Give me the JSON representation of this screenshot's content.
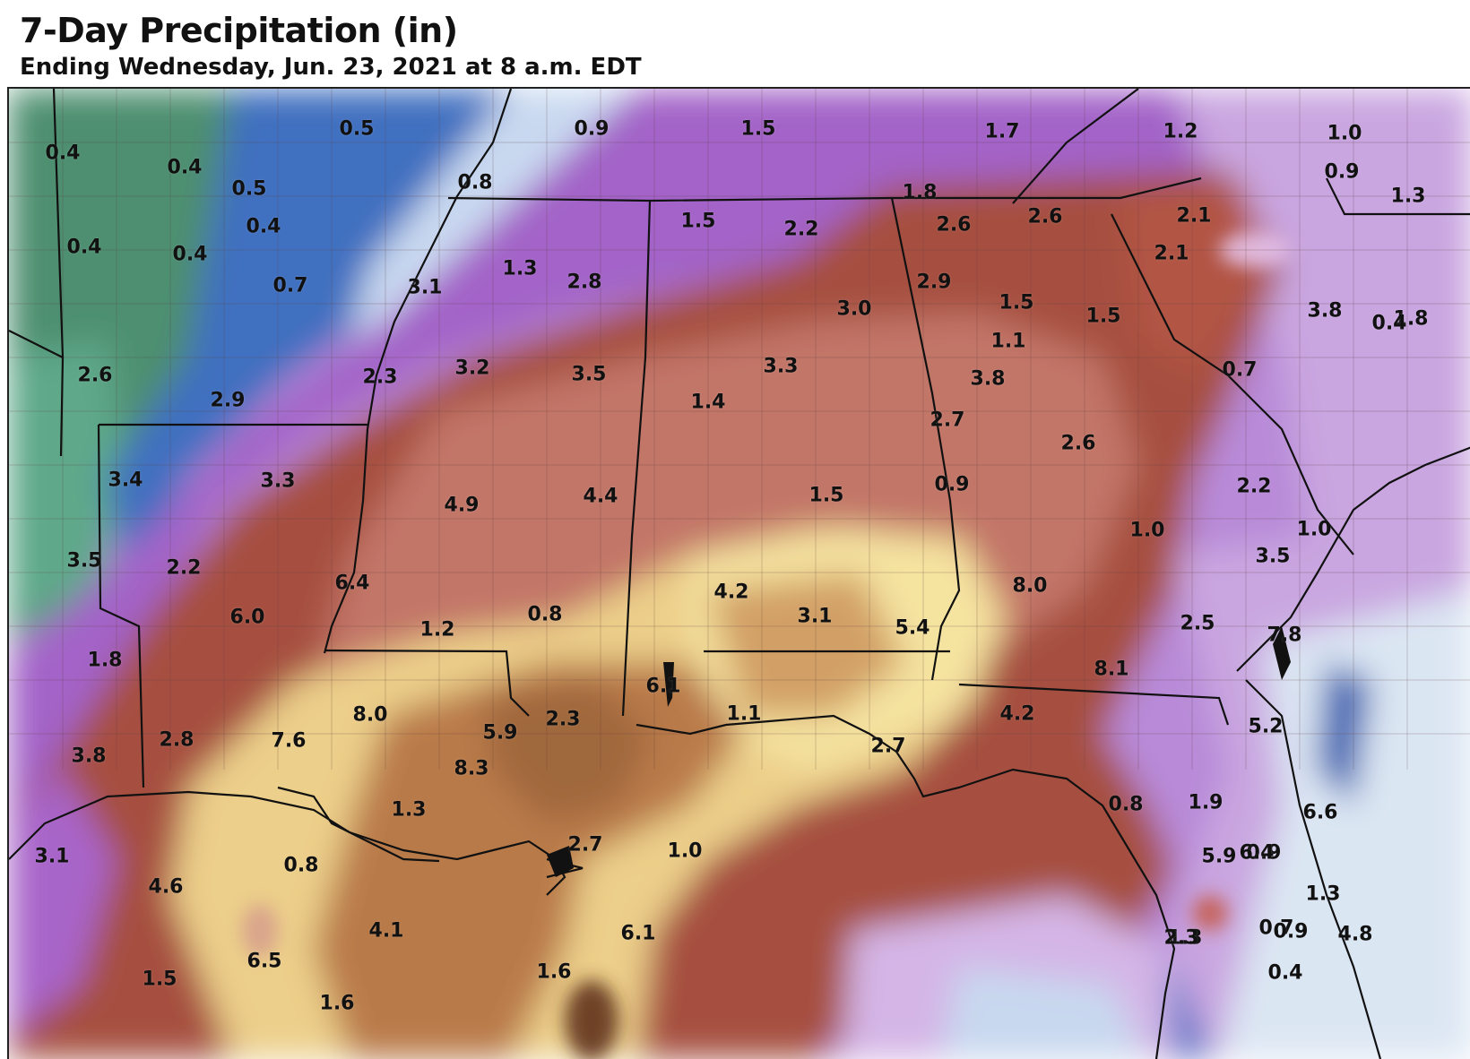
{
  "header": {
    "title": "7-Day Precipitation (in)",
    "subtitle": "Ending Wednesday, Jun. 23, 2021 at 8 a.m. EDT"
  },
  "legend_colors": {
    "light": "#9bd6a8",
    "low": "#4d8f6f",
    "blue": "#3b6fc4",
    "lightblue": "#d5e4f3",
    "lavender": "#d2b6e6",
    "purple": "#a060c8",
    "brown_red": "#a94e42",
    "salmon": "#c87a70",
    "tan": "#e6c98a",
    "cream": "#f5e6a4",
    "brown": "#b97b4c",
    "dark_brown": "#6a3418"
  },
  "labels": [
    "0.4",
    "0.5",
    "0.4",
    "0.5",
    "0.4",
    "0.4",
    "0.4",
    "0.7",
    "0.9",
    "0.8",
    "1.5",
    "1.7",
    "1.2",
    "1.0",
    "0.9",
    "1.8",
    "2.6",
    "2.6",
    "2.1",
    "2.1",
    "1.5",
    "2.2",
    "1.3",
    "1.8",
    "1.3",
    "2.8",
    "3.1",
    "2.9",
    "3.0",
    "1.5",
    "1.5",
    "3.8",
    "0.4",
    "1.1",
    "2.6",
    "2.3",
    "2.9",
    "3.2",
    "3.5",
    "3.3",
    "3.8",
    "1.4",
    "2.7",
    "0.7",
    "2.6",
    "3.4",
    "3.3",
    "4.9",
    "4.4",
    "1.5",
    "0.9",
    "2.2",
    "3.5",
    "2.2",
    "1.0",
    "1.0",
    "3.5",
    "6.4",
    "6.0",
    "4.2",
    "3.1",
    "5.4",
    "8.0",
    "1.2",
    "0.8",
    "2.5",
    "7.8",
    "1.8",
    "6.1",
    "8.1",
    "8.0",
    "5.9",
    "2.3",
    "1.1",
    "4.2",
    "5.2",
    "2.8",
    "7.6",
    "3.8",
    "8.3",
    "2.7",
    "1.3",
    "0.8",
    "1.9",
    "6.6",
    "5.9",
    "3.1",
    "0.8",
    "0.9",
    "2.7",
    "1.0",
    "6.4",
    "4.6",
    "1.3",
    "0.7",
    "1.3",
    "4.1",
    "6.1",
    "0.9",
    "2.3",
    "4.8",
    "6.5",
    "1.6",
    "0.4",
    "1.5",
    "1.6"
  ]
}
